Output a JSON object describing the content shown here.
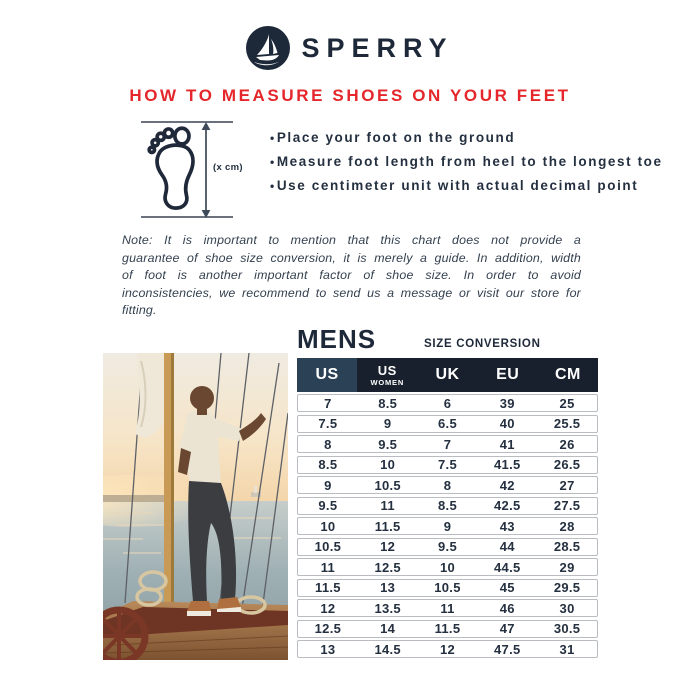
{
  "brand": {
    "name": "SPERRY",
    "navy": "#1d2839",
    "red": "#e5262b"
  },
  "title": "HOW TO MEASURE SHOES ON YOUR FEET",
  "measure": {
    "bullet_char": "•",
    "diagram_label": "(x cm)",
    "bullets": [
      "Place your foot on the ground",
      "Measure foot length from heel to the longest toe",
      "Use centimeter unit with actual decimal point"
    ]
  },
  "note": "Note: It is important to mention that this chart does not provide a guarantee of shoe size conversion, it is merely a guide. In addition, width of foot is another important factor of shoe size. In order to avoid inconsistencies, we recommend to send us a message or visit our store for fitting.",
  "size_table": {
    "section_title": "MENS",
    "subtitle": "SIZE CONVERSION",
    "header_cells": [
      {
        "label": "US",
        "sub": ""
      },
      {
        "label": "US",
        "sub": "WOMEN"
      },
      {
        "label": "UK",
        "sub": ""
      },
      {
        "label": "EU",
        "sub": ""
      },
      {
        "label": "CM",
        "sub": ""
      }
    ],
    "rows": [
      [
        "7",
        "8.5",
        "6",
        "39",
        "25"
      ],
      [
        "7.5",
        "9",
        "6.5",
        "40",
        "25.5"
      ],
      [
        "8",
        "9.5",
        "7",
        "41",
        "26"
      ],
      [
        "8.5",
        "10",
        "7.5",
        "41.5",
        "26.5"
      ],
      [
        "9",
        "10.5",
        "8",
        "42",
        "27"
      ],
      [
        "9.5",
        "11",
        "8.5",
        "42.5",
        "27.5"
      ],
      [
        "10",
        "11.5",
        "9",
        "43",
        "28"
      ],
      [
        "10.5",
        "12",
        "9.5",
        "44",
        "28.5"
      ],
      [
        "11",
        "12.5",
        "10",
        "44.5",
        "29"
      ],
      [
        "11.5",
        "13",
        "10.5",
        "45",
        "29.5"
      ],
      [
        "12",
        "13.5",
        "11",
        "46",
        "30"
      ],
      [
        "12.5",
        "14",
        "11.5",
        "47",
        "30.5"
      ],
      [
        "13",
        "14.5",
        "12",
        "47.5",
        "31"
      ]
    ]
  }
}
